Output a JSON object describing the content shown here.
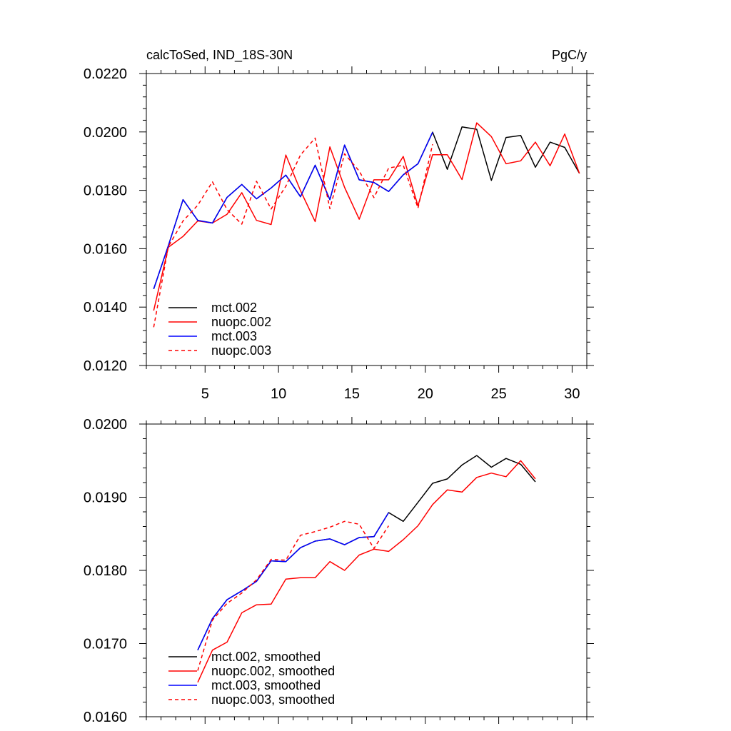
{
  "chart_data": [
    {
      "type": "line",
      "title_left": "calcToSed, IND_18S-30N",
      "title_right": "PgC/y",
      "xlabel": "",
      "ylabel": "",
      "xlim": [
        1,
        31
      ],
      "ylim": [
        0.012,
        0.022
      ],
      "yticks": [
        0.012,
        0.014,
        0.016,
        0.018,
        0.02,
        0.022
      ],
      "ytick_labels": [
        "0.0120",
        "0.0140",
        "0.0160",
        "0.0180",
        "0.0200",
        "0.0220"
      ],
      "xticks": [
        5,
        10,
        15,
        20,
        25,
        30
      ],
      "xtick_labels": [
        "5",
        "10",
        "15",
        "20",
        "25",
        "30"
      ],
      "legend_position": "bottom-left",
      "series": [
        {
          "name": "mct.002",
          "color": "#000000",
          "dash": "solid",
          "x": [
            1.5,
            2.5,
            3.5,
            4.5,
            5.5,
            6.5,
            7.5,
            8.5,
            9.5,
            10.5,
            11.5,
            12.5,
            13.5,
            14.5,
            15.5,
            16.5,
            17.5,
            18.5,
            19.5,
            20.5,
            21.5,
            22.5,
            23.5,
            24.5,
            25.5,
            26.5,
            27.5,
            28.5,
            29.5,
            30.5
          ],
          "values": [
            0.01462,
            0.0161,
            0.01768,
            0.01697,
            0.01688,
            0.01776,
            0.0182,
            0.01771,
            0.01808,
            0.01852,
            0.01778,
            0.01886,
            0.01768,
            0.01955,
            0.01836,
            0.01827,
            0.01796,
            0.01853,
            0.01891,
            0.01999,
            0.01872,
            0.02017,
            0.02009,
            0.01834,
            0.01981,
            0.01988,
            0.01879,
            0.01965,
            0.01947,
            0.01858
          ]
        },
        {
          "name": "nuopc.002",
          "color": "#ff0000",
          "dash": "solid",
          "x": [
            1.5,
            2.5,
            3.5,
            4.5,
            5.5,
            6.5,
            7.5,
            8.5,
            9.5,
            10.5,
            11.5,
            12.5,
            13.5,
            14.5,
            15.5,
            16.5,
            17.5,
            18.5,
            19.5,
            20.5,
            21.5,
            22.5,
            23.5,
            24.5,
            25.5,
            26.5,
            27.5,
            28.5,
            29.5,
            30.5
          ],
          "values": [
            0.01388,
            0.01605,
            0.01642,
            0.01695,
            0.01688,
            0.01718,
            0.01792,
            0.01697,
            0.01683,
            0.01921,
            0.01799,
            0.01693,
            0.01949,
            0.0181,
            0.01701,
            0.01836,
            0.01836,
            0.01916,
            0.01747,
            0.01922,
            0.01922,
            0.01837,
            0.02031,
            0.01984,
            0.01891,
            0.01901,
            0.01965,
            0.01884,
            0.01993,
            0.01858
          ]
        },
        {
          "name": "mct.003",
          "color": "#0000ff",
          "dash": "solid",
          "x": [
            1.5,
            2.5,
            3.5,
            4.5,
            5.5,
            6.5,
            7.5,
            8.5,
            9.5,
            10.5,
            11.5,
            12.5,
            13.5,
            14.5,
            15.5,
            16.5,
            17.5,
            18.5,
            19.5,
            20.5
          ],
          "values": [
            0.01462,
            0.0161,
            0.01768,
            0.01697,
            0.01688,
            0.01776,
            0.0182,
            0.01771,
            0.01808,
            0.01852,
            0.01778,
            0.01886,
            0.01768,
            0.01955,
            0.01836,
            0.01827,
            0.01796,
            0.01853,
            0.01891,
            0.01999
          ]
        },
        {
          "name": "nuopc.003",
          "color": "#ff0000",
          "dash": "dashed",
          "x": [
            1.5,
            2.5,
            3.5,
            4.5,
            5.5,
            6.5,
            7.5,
            8.5,
            9.5,
            10.5,
            11.5,
            12.5,
            13.5,
            14.5,
            15.5,
            16.5,
            17.5,
            18.5,
            19.5,
            20.5
          ],
          "values": [
            0.01331,
            0.01607,
            0.01695,
            0.01749,
            0.01829,
            0.01734,
            0.01684,
            0.01831,
            0.01736,
            0.01814,
            0.01921,
            0.01979,
            0.01737,
            0.01925,
            0.01866,
            0.01775,
            0.01876,
            0.01886,
            0.01739,
            0.01958
          ]
        }
      ]
    },
    {
      "type": "line",
      "title_left": "",
      "title_right": "",
      "xlabel": "",
      "ylabel": "",
      "xlim": [
        1,
        31
      ],
      "ylim": [
        0.016,
        0.02
      ],
      "yticks": [
        0.016,
        0.017,
        0.018,
        0.019,
        0.02
      ],
      "ytick_labels": [
        "0.0160",
        "0.0170",
        "0.0180",
        "0.0190",
        "0.0200"
      ],
      "xticks": [
        5,
        10,
        15,
        20,
        25,
        30
      ],
      "xtick_labels": [
        "",
        "",
        "",
        "",
        "",
        ""
      ],
      "legend_position": "bottom-left",
      "series": [
        {
          "name": "mct.002, smoothed",
          "color": "#000000",
          "dash": "solid",
          "x": [
            4.5,
            5.5,
            6.5,
            7.5,
            8.5,
            9.5,
            10.5,
            11.5,
            12.5,
            13.5,
            14.5,
            15.5,
            16.5,
            17.5,
            18.5,
            19.5,
            20.5,
            21.5,
            22.5,
            23.5,
            24.5,
            25.5,
            26.5,
            27.5
          ],
          "values": [
            0.01691,
            0.01734,
            0.0176,
            0.01772,
            0.01785,
            0.01813,
            0.01812,
            0.01831,
            0.0184,
            0.01843,
            0.01835,
            0.01845,
            0.01846,
            0.01879,
            0.01867,
            0.01893,
            0.01919,
            0.01925,
            0.01944,
            0.01957,
            0.01941,
            0.01953,
            0.01945,
            0.01921
          ]
        },
        {
          "name": "nuopc.002, smoothed",
          "color": "#ff0000",
          "dash": "solid",
          "x": [
            4.5,
            5.5,
            6.5,
            7.5,
            8.5,
            9.5,
            10.5,
            11.5,
            12.5,
            13.5,
            14.5,
            15.5,
            16.5,
            17.5,
            18.5,
            19.5,
            20.5,
            21.5,
            22.5,
            23.5,
            24.5,
            25.5,
            26.5,
            27.5
          ],
          "values": [
            0.01647,
            0.01691,
            0.01702,
            0.01742,
            0.01753,
            0.01754,
            0.01788,
            0.0179,
            0.0179,
            0.01812,
            0.018,
            0.01821,
            0.01829,
            0.01826,
            0.01842,
            0.01861,
            0.0189,
            0.0191,
            0.01907,
            0.01927,
            0.01933,
            0.01928,
            0.0195,
            0.01925
          ]
        },
        {
          "name": "mct.003, smoothed",
          "color": "#0000ff",
          "dash": "solid",
          "x": [
            4.5,
            5.5,
            6.5,
            7.5,
            8.5,
            9.5,
            10.5,
            11.5,
            12.5,
            13.5,
            14.5,
            15.5,
            16.5,
            17.5
          ],
          "values": [
            0.01691,
            0.01734,
            0.0176,
            0.01772,
            0.01785,
            0.01813,
            0.01812,
            0.01831,
            0.0184,
            0.01843,
            0.01835,
            0.01845,
            0.01846,
            0.01879
          ]
        },
        {
          "name": "nuopc.003, smoothed",
          "color": "#ff0000",
          "dash": "dashed",
          "x": [
            4.5,
            5.5,
            6.5,
            7.5,
            8.5,
            9.5,
            10.5,
            11.5,
            12.5,
            13.5,
            14.5,
            15.5,
            16.5,
            17.5
          ],
          "values": [
            0.01663,
            0.01732,
            0.01755,
            0.01769,
            0.01787,
            0.01815,
            0.01814,
            0.01848,
            0.01853,
            0.01859,
            0.01867,
            0.01863,
            0.0183,
            0.01861
          ]
        }
      ]
    }
  ]
}
